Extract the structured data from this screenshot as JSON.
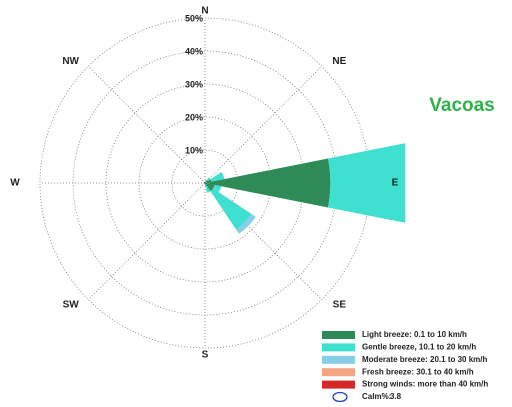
{
  "chart_data": {
    "type": "windrose",
    "title": "Vacoas",
    "title_color": "#2db34a",
    "categories": [
      "N",
      null,
      "NE",
      null,
      "E",
      null,
      "SE",
      null,
      "S",
      null,
      "SW",
      null,
      "W",
      null,
      "NW",
      null
    ],
    "series": [
      {
        "name": "Light breeze: 0.1 to 10 km/h",
        "color": "#2e8b57",
        "values": [
          0.5,
          0.5,
          1,
          2,
          38,
          3,
          3,
          1,
          0.5,
          0.3,
          0.3,
          0.3,
          0.5,
          0.3,
          0.3,
          0.3
        ]
      },
      {
        "name": "Gentle breeze, 10.1 to 20 km/h",
        "color": "#40e0d0",
        "values": [
          0,
          0.5,
          1,
          4,
          27,
          2,
          14,
          2,
          0,
          0,
          0,
          0,
          0,
          0,
          0,
          0
        ]
      },
      {
        "name": "Moderate breeze: 20.1 to 30 km/h",
        "color": "#87ceeb",
        "values": [
          0,
          0,
          0,
          0,
          0,
          0,
          1.5,
          0,
          0,
          0,
          0,
          0,
          0,
          0,
          0,
          0
        ]
      },
      {
        "name": "Fresh breeze: 30.1 to 40 km/h",
        "color": "#f4a582",
        "values": [
          0,
          0,
          0,
          0,
          0,
          0,
          0,
          0,
          0,
          0,
          0,
          0,
          0,
          0,
          0,
          0
        ]
      },
      {
        "name": "Strong winds: more than 40 km/h",
        "color": "#d62728",
        "values": [
          0,
          0,
          0,
          0,
          0,
          0,
          0,
          0,
          0,
          0,
          0,
          0,
          0,
          0,
          0,
          0
        ]
      }
    ],
    "rlim": [
      0,
      50
    ],
    "rticks": [
      {
        "value": 10,
        "label": "10%"
      },
      {
        "value": 20,
        "label": "20%"
      },
      {
        "value": 30,
        "label": "30%"
      },
      {
        "value": 40,
        "label": "40%"
      },
      {
        "value": 50,
        "label": "50%"
      }
    ],
    "calm": {
      "label": "Calm%:",
      "value": 3.8,
      "color": "#1f3fbf"
    }
  }
}
